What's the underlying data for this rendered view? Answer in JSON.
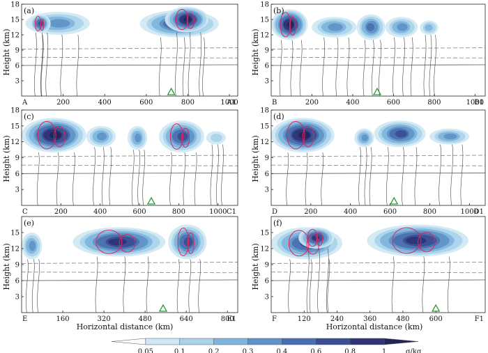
{
  "figure": {
    "ylabel": "Height (km)",
    "xlabel": "Horizontal distance (km)",
    "colorbar": {
      "levels": [
        "0.05",
        "0.1",
        "0.2",
        "0.3",
        "0.4",
        "0.6",
        "0.8",
        "1"
      ],
      "unit": "g/kg",
      "colors": [
        "#f7fbfd",
        "#cfe7f3",
        "#a9d3ea",
        "#7fb5dc",
        "#5f92c6",
        "#4a6fae",
        "#3b4e90",
        "#2e3474",
        "#23245a"
      ]
    }
  },
  "chart_data": [
    {
      "type": "heatmap",
      "panel": "(a)",
      "start_label": "A",
      "end_label": "A1",
      "xticks": [
        200,
        400,
        600,
        800,
        1000
      ],
      "xlim": [
        0,
        1040
      ],
      "yticks": [
        3,
        6,
        9,
        12,
        15,
        18
      ],
      "ylim": [
        0,
        18
      ],
      "marker_x": 720,
      "blobs": [
        [
          20,
          330,
          12.0,
          16.5,
          0.55
        ],
        [
          40,
          140,
          12.4,
          16.0,
          0.8
        ],
        [
          570,
          950,
          11.5,
          16.8,
          0.7
        ],
        [
          690,
          900,
          12.5,
          17.5,
          0.95
        ]
      ]
    },
    {
      "type": "heatmap",
      "panel": "(b)",
      "start_label": "B",
      "end_label": "B1",
      "xticks": [
        200,
        400,
        600,
        800,
        1000
      ],
      "xlim": [
        0,
        1050
      ],
      "yticks": [
        3,
        6,
        9,
        12,
        15,
        18
      ],
      "ylim": [
        0,
        18
      ],
      "marker_x": 520,
      "blobs": [
        [
          0,
          180,
          11.0,
          17.0,
          0.95
        ],
        [
          200,
          420,
          11.5,
          15.5,
          0.45
        ],
        [
          420,
          560,
          11.0,
          16.0,
          0.6
        ],
        [
          560,
          720,
          11.5,
          15.5,
          0.55
        ],
        [
          730,
          820,
          12.0,
          14.8,
          0.35
        ]
      ]
    },
    {
      "type": "heatmap",
      "panel": "(c)",
      "start_label": "C",
      "end_label": "C1",
      "xticks": [
        200,
        400,
        600,
        800,
        1000
      ],
      "xlim": [
        0,
        1100
      ],
      "yticks": [
        3,
        6,
        9,
        12,
        15,
        18
      ],
      "ylim": [
        0,
        18
      ],
      "marker_x": 660,
      "blobs": [
        [
          0,
          330,
          10.0,
          16.5,
          0.95
        ],
        [
          330,
          480,
          11.0,
          15.0,
          0.45
        ],
        [
          540,
          640,
          10.5,
          15.0,
          0.45
        ],
        [
          700,
          930,
          10.0,
          16.0,
          0.8
        ],
        [
          940,
          1040,
          11.5,
          14.0,
          0.3
        ]
      ]
    },
    {
      "type": "heatmap",
      "panel": "(d)",
      "start_label": "D",
      "end_label": "D1",
      "xticks": [
        200,
        400,
        600,
        800,
        1000
      ],
      "xlim": [
        0,
        1080
      ],
      "yticks": [
        3,
        6,
        9,
        12,
        15,
        18
      ],
      "ylim": [
        0,
        18
      ],
      "marker_x": 620,
      "blobs": [
        [
          0,
          320,
          10.0,
          16.5,
          0.95
        ],
        [
          420,
          520,
          11.0,
          14.5,
          0.5
        ],
        [
          520,
          780,
          11.0,
          16.0,
          0.7
        ],
        [
          800,
          1000,
          11.5,
          14.5,
          0.45
        ]
      ]
    },
    {
      "type": "heatmap",
      "panel": "(e)",
      "start_label": "E",
      "end_label": "E1",
      "xticks": [
        160,
        320,
        480,
        640,
        800
      ],
      "xlim": [
        0,
        840
      ],
      "yticks": [
        3,
        6,
        9,
        12,
        15
      ],
      "ylim": [
        0,
        18
      ],
      "marker_x": 550,
      "blobs": [
        [
          0,
          80,
          10.0,
          15.0,
          0.55
        ],
        [
          200,
          560,
          10.5,
          16.0,
          0.85
        ],
        [
          570,
          720,
          10.0,
          16.5,
          0.8
        ]
      ]
    },
    {
      "type": "heatmap",
      "panel": "(f)",
      "start_label": "F",
      "end_label": "F1",
      "xticks": [
        120,
        240,
        360,
        480,
        600
      ],
      "xlim": [
        0,
        780
      ],
      "yticks": [
        3,
        6,
        9,
        12,
        15
      ],
      "ylim": [
        0,
        18
      ],
      "marker_x": 600,
      "blobs": [
        [
          0,
          260,
          10.0,
          16.0,
          0.8
        ],
        [
          100,
          230,
          12.0,
          16.0,
          0.9
        ],
        [
          350,
          720,
          10.5,
          16.5,
          0.85
        ]
      ]
    }
  ]
}
